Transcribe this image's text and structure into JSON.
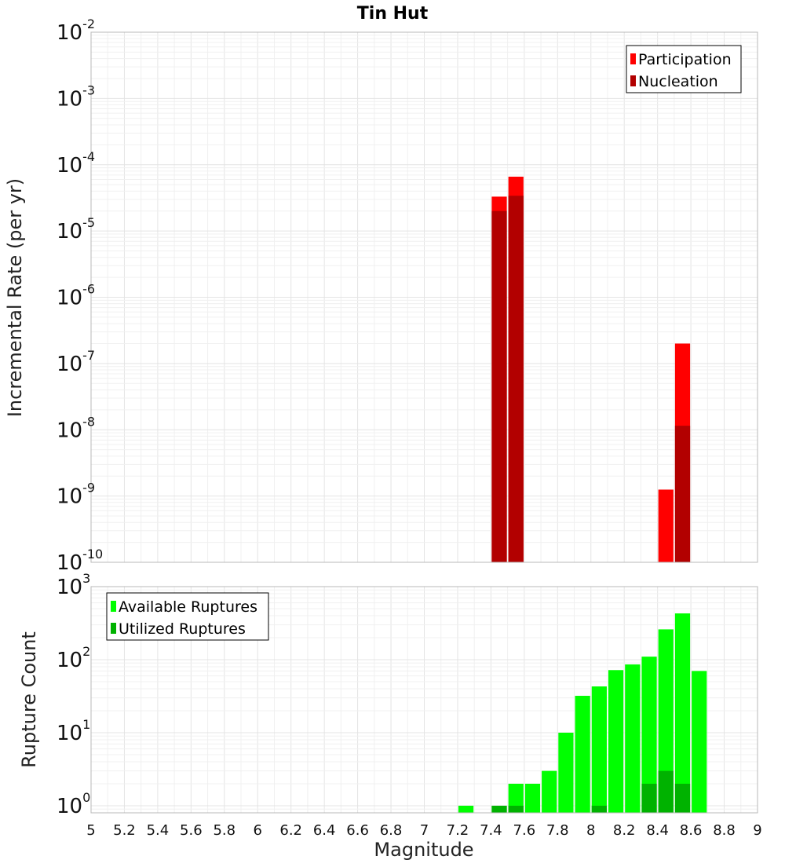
{
  "chart_data": [
    {
      "type": "bar",
      "title": "Tin Hut",
      "xlabel": "",
      "ylabel": "Incremental Rate (per yr)",
      "xlim": [
        5,
        9
      ],
      "ylim": [
        1e-10,
        0.01
      ],
      "yscale": "log",
      "bar_width": 0.1,
      "grid": true,
      "legend_position": "top-right",
      "series": [
        {
          "name": "Participation",
          "color": "#ff0000",
          "points": [
            {
              "x": 7.45,
              "y": 3.3e-05
            },
            {
              "x": 7.55,
              "y": 6.6e-05
            },
            {
              "x": 8.45,
              "y": 1.25e-09
            },
            {
              "x": 8.55,
              "y": 2e-07
            }
          ]
        },
        {
          "name": "Nucleation",
          "color": "#b20000",
          "points": [
            {
              "x": 7.45,
              "y": 2e-05
            },
            {
              "x": 7.55,
              "y": 3.4e-05
            },
            {
              "x": 8.55,
              "y": 1.15e-08
            }
          ]
        }
      ]
    },
    {
      "type": "bar",
      "title": "",
      "xlabel": "Magnitude",
      "ylabel": "Rupture Count",
      "xlim": [
        5,
        9
      ],
      "ylim": [
        0.8,
        1000
      ],
      "yscale": "log",
      "bar_width": 0.1,
      "grid": true,
      "legend_position": "top-left",
      "x_ticks": [
        "5",
        "5.2",
        "5.4",
        "5.6",
        "5.8",
        "6",
        "6.2",
        "6.4",
        "6.6",
        "6.8",
        "7",
        "7.2",
        "7.4",
        "7.6",
        "7.8",
        "8",
        "8.2",
        "8.4",
        "8.6",
        "8.8",
        "9"
      ],
      "series": [
        {
          "name": "Available Ruptures",
          "color": "#00ff00",
          "points": [
            {
              "x": 7.25,
              "y": 1
            },
            {
              "x": 7.45,
              "y": 1
            },
            {
              "x": 7.55,
              "y": 2
            },
            {
              "x": 7.65,
              "y": 2
            },
            {
              "x": 7.75,
              "y": 3
            },
            {
              "x": 7.85,
              "y": 10
            },
            {
              "x": 7.95,
              "y": 32
            },
            {
              "x": 8.05,
              "y": 43
            },
            {
              "x": 8.15,
              "y": 72
            },
            {
              "x": 8.25,
              "y": 86
            },
            {
              "x": 8.35,
              "y": 110
            },
            {
              "x": 8.45,
              "y": 260
            },
            {
              "x": 8.55,
              "y": 430
            },
            {
              "x": 8.65,
              "y": 70
            }
          ]
        },
        {
          "name": "Utilized Ruptures",
          "color": "#00b200",
          "points": [
            {
              "x": 7.45,
              "y": 1
            },
            {
              "x": 7.55,
              "y": 1
            },
            {
              "x": 8.05,
              "y": 1
            },
            {
              "x": 8.35,
              "y": 2
            },
            {
              "x": 8.45,
              "y": 3
            },
            {
              "x": 8.55,
              "y": 2
            }
          ]
        }
      ]
    }
  ]
}
